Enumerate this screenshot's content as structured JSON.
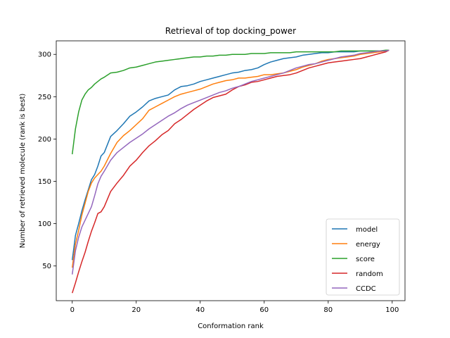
{
  "chart_data": {
    "type": "line",
    "title": "Retrieval of top docking_power",
    "xlabel": "Conformation rank",
    "ylabel": "Number of retrieved molecule (rank is best)",
    "xlim": [
      -5,
      104
    ],
    "ylim": [
      9,
      316
    ],
    "xticks": [
      0,
      20,
      40,
      60,
      80,
      100
    ],
    "yticks": [
      50,
      100,
      150,
      200,
      250,
      300
    ],
    "grid": false,
    "legend": "lower right",
    "x": [
      0,
      1,
      2,
      3,
      4,
      5,
      6,
      7,
      8,
      9,
      10,
      12,
      14,
      16,
      18,
      20,
      22,
      24,
      26,
      28,
      30,
      32,
      34,
      36,
      38,
      40,
      42,
      44,
      46,
      48,
      50,
      52,
      54,
      56,
      58,
      60,
      62,
      64,
      66,
      68,
      70,
      72,
      74,
      76,
      78,
      80,
      82,
      84,
      86,
      88,
      90,
      92,
      94,
      96,
      98,
      99
    ],
    "series": [
      {
        "name": "model",
        "color": "#1f77b4",
        "values": [
          57,
          86,
          100,
          115,
          128,
          140,
          152,
          158,
          168,
          180,
          184,
          203,
          210,
          218,
          227,
          232,
          238,
          245,
          248,
          250,
          252,
          258,
          262,
          263,
          265,
          268,
          270,
          272,
          274,
          276,
          278,
          279,
          281,
          282,
          284,
          288,
          291,
          293,
          295,
          296,
          297,
          299,
          300,
          301,
          302,
          302,
          303,
          303,
          303,
          303,
          304,
          304,
          304,
          304,
          304,
          305
        ]
      },
      {
        "name": "energy",
        "color": "#ff7f0e",
        "values": [
          48,
          76,
          92,
          110,
          124,
          138,
          148,
          154,
          158,
          162,
          168,
          183,
          196,
          204,
          210,
          217,
          224,
          234,
          238,
          242,
          246,
          250,
          253,
          255,
          257,
          259,
          262,
          265,
          267,
          269,
          270,
          272,
          272,
          273,
          274,
          276,
          276,
          277,
          278,
          280,
          282,
          285,
          287,
          289,
          292,
          294,
          295,
          296,
          297,
          298,
          300,
          301,
          302,
          303,
          304,
          305
        ]
      },
      {
        "name": "score",
        "color": "#2ca02c",
        "values": [
          182,
          212,
          232,
          246,
          253,
          258,
          261,
          265,
          268,
          271,
          273,
          278,
          279,
          281,
          284,
          285,
          287,
          289,
          291,
          292,
          293,
          294,
          295,
          296,
          297,
          297,
          298,
          298,
          299,
          299,
          300,
          300,
          300,
          301,
          301,
          301,
          302,
          302,
          302,
          302,
          303,
          303,
          303,
          303,
          303,
          303,
          303,
          304,
          304,
          304,
          304,
          304,
          304,
          304,
          305,
          305
        ]
      },
      {
        "name": "random",
        "color": "#d62728",
        "values": [
          18,
          30,
          43,
          55,
          66,
          79,
          91,
          101,
          112,
          114,
          120,
          138,
          148,
          157,
          168,
          175,
          184,
          192,
          198,
          205,
          210,
          218,
          223,
          229,
          235,
          240,
          245,
          249,
          251,
          253,
          258,
          262,
          264,
          267,
          268,
          270,
          272,
          274,
          275,
          276,
          278,
          281,
          284,
          286,
          288,
          290,
          291,
          292,
          293,
          294,
          295,
          297,
          299,
          301,
          303,
          305
        ]
      },
      {
        "name": "CCDC",
        "color": "#9467bd",
        "values": [
          40,
          68,
          84,
          96,
          104,
          112,
          120,
          133,
          147,
          156,
          162,
          175,
          184,
          190,
          196,
          201,
          206,
          212,
          217,
          222,
          227,
          231,
          236,
          240,
          243,
          246,
          249,
          252,
          255,
          257,
          260,
          262,
          265,
          268,
          270,
          272,
          274,
          276,
          278,
          281,
          284,
          286,
          288,
          289,
          291,
          293,
          295,
          297,
          298,
          299,
          301,
          302,
          303,
          304,
          304,
          305
        ]
      }
    ]
  }
}
